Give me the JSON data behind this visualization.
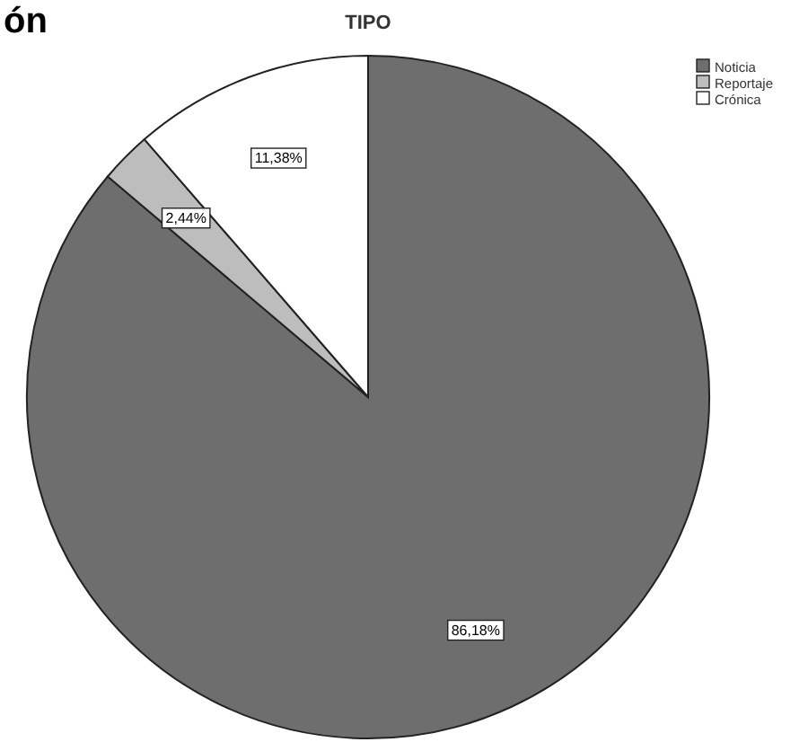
{
  "chart_data": {
    "type": "pie",
    "title": "TIPO",
    "categories": [
      "Noticia",
      "Reportaje",
      "Crónica"
    ],
    "values": [
      86.18,
      2.44,
      11.38
    ],
    "colors": [
      "#6e6e6e",
      "#bdbdbd",
      "#ffffff"
    ],
    "value_labels": [
      "86,18%",
      "2,44%",
      "11,38%"
    ],
    "legend": "top right",
    "annotations": [
      "ón"
    ]
  }
}
